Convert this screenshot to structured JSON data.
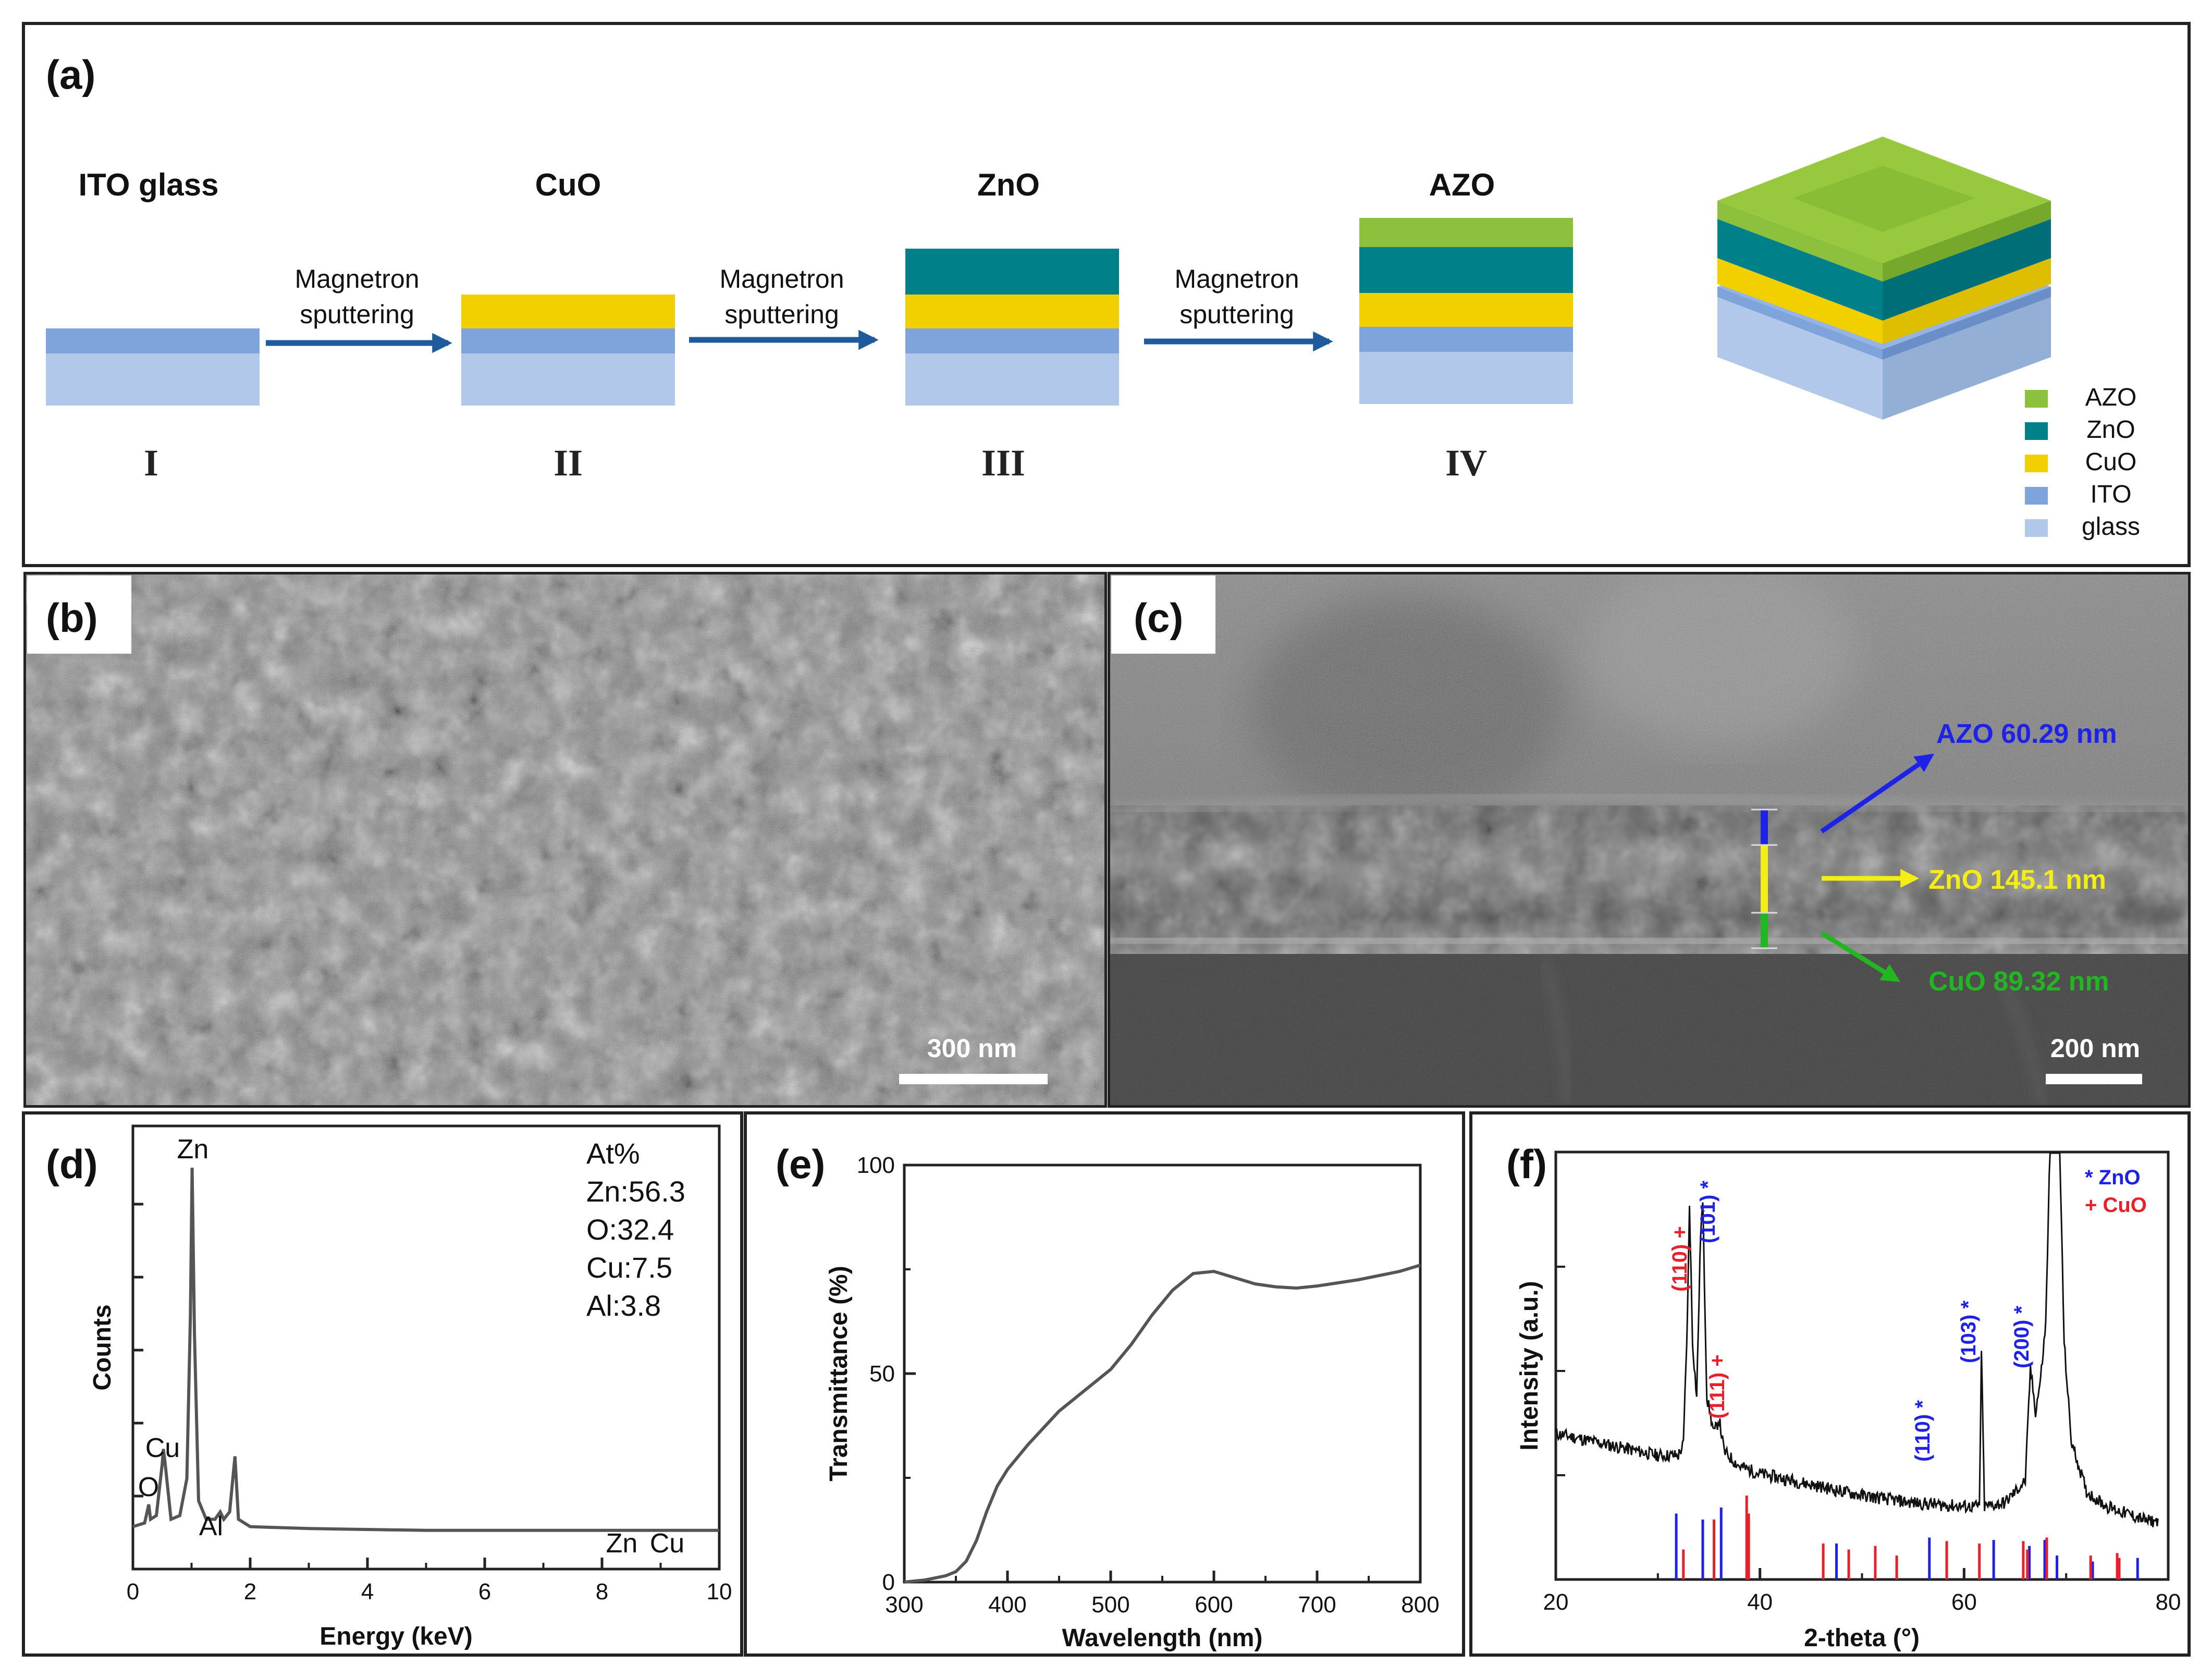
{
  "panel_a": {
    "tag": "(a)",
    "stages": [
      {
        "title": "ITO glass",
        "numeral": "I"
      },
      {
        "title": "CuO",
        "numeral": "II"
      },
      {
        "title": "ZnO",
        "numeral": "III"
      },
      {
        "title": "AZO",
        "numeral": "IV"
      }
    ],
    "arrow_label_1": "Magnetron",
    "arrow_label_2": "sputtering",
    "legend": [
      {
        "label": "AZO",
        "color": "#8DC13D"
      },
      {
        "label": "ZnO",
        "color": "#00818A"
      },
      {
        "label": "CuO",
        "color": "#F2D000"
      },
      {
        "label": "ITO",
        "color": "#7FA4DC"
      },
      {
        "label": "glass",
        "color": "#B1C8EA"
      }
    ],
    "arrow_color": "#1F5B9C"
  },
  "panel_b": {
    "tag": "(b)",
    "scale_bar": "300 nm"
  },
  "panel_c": {
    "tag": "(c)",
    "scale_bar": "200 nm",
    "labels": [
      {
        "text": "AZO 60.29 nm",
        "color": "#1E22E6"
      },
      {
        "text": "ZnO 145.1 nm",
        "color": "#F4EE16"
      },
      {
        "text": "CuO 89.32 nm",
        "color": "#22B622"
      }
    ]
  },
  "panel_d": {
    "tag": "(d)",
    "ylabel": "Counts",
    "xlabel": "Energy (keV)",
    "composition_title": "At%",
    "composition": [
      "Zn:56.3",
      "O:32.4",
      "Cu:7.5",
      "Al:3.8"
    ],
    "peak_labels": [
      "Zn",
      "Cu",
      "O",
      "Al",
      "Zn",
      "Cu"
    ],
    "x_ticks": [
      "0",
      "2",
      "4",
      "6",
      "8",
      "10"
    ]
  },
  "panel_e": {
    "tag": "(e)",
    "ylabel": "Transmittance (%)",
    "xlabel": "Wavelength (nm)",
    "x_ticks": [
      "300",
      "400",
      "500",
      "600",
      "700",
      "800"
    ],
    "y_ticks": [
      "0",
      "50",
      "100"
    ]
  },
  "panel_f": {
    "tag": "(f)",
    "ylabel": "Intensity (a.u.)",
    "xlabel": "2-theta (°)",
    "legend": [
      {
        "text": "* ZnO",
        "color": "#1E22E6"
      },
      {
        "text": "+ CuO",
        "color": "#E8202A"
      }
    ],
    "peak_labels": [
      {
        "text": "(110) +",
        "color": "#E8202A"
      },
      {
        "text": "(101) *",
        "color": "#1E22E6"
      },
      {
        "text": "(111) +",
        "color": "#E8202A"
      },
      {
        "text": "(110) *",
        "color": "#1E22E6"
      },
      {
        "text": "(103) *",
        "color": "#1E22E6"
      },
      {
        "text": "(200) *",
        "color": "#1E22E6"
      }
    ],
    "x_ticks": [
      "20",
      "40",
      "60",
      "80"
    ]
  },
  "chart_data": [
    {
      "panel": "d",
      "type": "line",
      "xlabel": "Energy (keV)",
      "ylabel": "Counts",
      "xlim": [
        0,
        10
      ],
      "x": [
        0.0,
        0.2,
        0.27,
        0.3,
        0.4,
        0.5,
        0.52,
        0.55,
        0.65,
        0.8,
        0.92,
        0.98,
        1.01,
        1.05,
        1.12,
        1.25,
        1.4,
        1.49,
        1.55,
        1.65,
        1.74,
        1.8,
        2.0,
        3.0,
        5.0,
        7.0,
        8.6,
        10.0
      ],
      "y": [
        0.03,
        0.04,
        0.09,
        0.05,
        0.06,
        0.2,
        0.24,
        0.2,
        0.05,
        0.06,
        0.16,
        0.6,
        1.0,
        0.55,
        0.1,
        0.05,
        0.05,
        0.07,
        0.05,
        0.07,
        0.22,
        0.05,
        0.03,
        0.025,
        0.02,
        0.02,
        0.02,
        0.02
      ]
    },
    {
      "panel": "e",
      "type": "line",
      "xlabel": "Wavelength (nm)",
      "ylabel": "Transmittance (%)",
      "xlim": [
        300,
        800
      ],
      "ylim": [
        0,
        100
      ],
      "x": [
        300,
        320,
        340,
        350,
        360,
        370,
        380,
        390,
        400,
        420,
        450,
        480,
        500,
        520,
        540,
        560,
        580,
        600,
        620,
        640,
        660,
        680,
        700,
        740,
        780,
        800
      ],
      "y": [
        0,
        0.5,
        1.5,
        2.5,
        5,
        10,
        17,
        23,
        27,
        33,
        41,
        47,
        51,
        57,
        64,
        70,
        74,
        74.5,
        73,
        71.5,
        70.8,
        70.5,
        71,
        72.5,
        74.5,
        76
      ]
    },
    {
      "panel": "f",
      "type": "line",
      "xlabel": "2-theta (°)",
      "ylabel": "Intensity (a.u.)",
      "xlim": [
        20,
        80
      ],
      "x": [
        20,
        25,
        30,
        32,
        32.5,
        32.9,
        33.1,
        33.4,
        33.8,
        34.2,
        34.4,
        34.8,
        35.5,
        36.0,
        36.5,
        38,
        40,
        45,
        50,
        55,
        60,
        61.5,
        61.7,
        62.0,
        64,
        66.0,
        66.5,
        67.0,
        67.5,
        68.0,
        68.6,
        69.2,
        69.8,
        70.5,
        72,
        74,
        76,
        78,
        79
      ],
      "y": [
        0.3,
        0.27,
        0.24,
        0.24,
        0.27,
        0.62,
        0.93,
        0.55,
        0.4,
        0.86,
        0.93,
        0.4,
        0.3,
        0.34,
        0.25,
        0.21,
        0.19,
        0.16,
        0.13,
        0.11,
        0.1,
        0.1,
        0.52,
        0.1,
        0.11,
        0.17,
        0.48,
        0.36,
        0.45,
        0.6,
        1.3,
        1.3,
        0.55,
        0.28,
        0.14,
        0.1,
        0.08,
        0.06,
        0.06
      ]
    }
  ]
}
